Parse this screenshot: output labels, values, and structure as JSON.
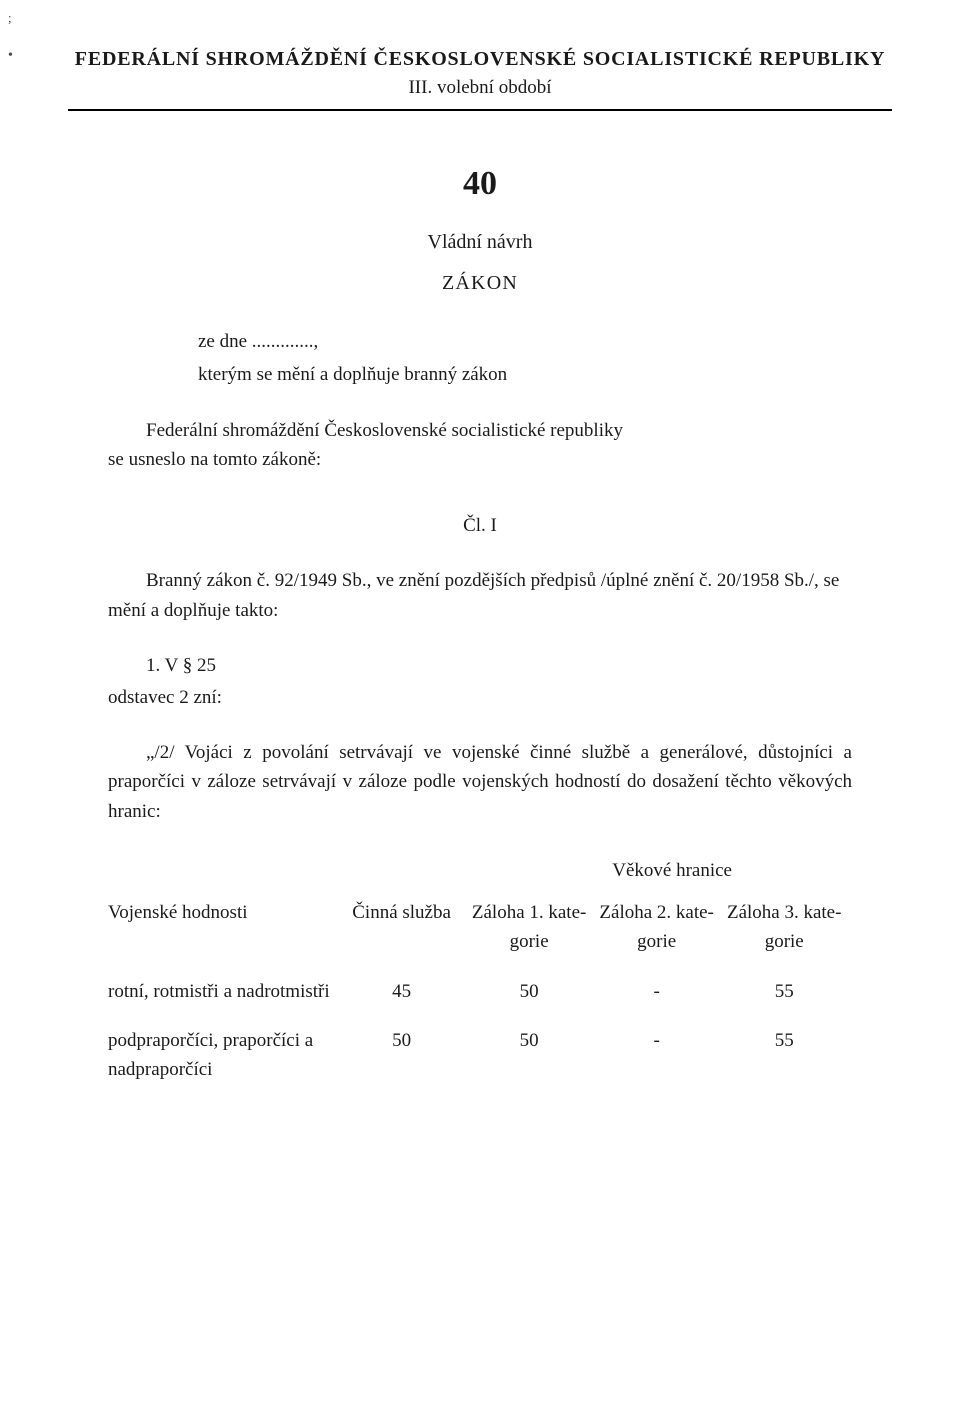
{
  "header": {
    "title": "FEDERÁLNÍ SHROMÁŽDĚNÍ ČESKOSLOVENSKÉ SOCIALISTICKÉ REPUBLIKY",
    "subtitle": "III. volební období"
  },
  "doc": {
    "number": "40",
    "type": "Vládní návrh",
    "title": "ZÁKON",
    "intro_line1": "ze dne .............,",
    "intro_line2": "kterým se mění a doplňuje branný zákon",
    "resolution_line1": "Federální shromáždění Československé socialistické republiky",
    "resolution_line2": "se usneslo na tomto zákoně:",
    "article": "Čl. I",
    "para1": "Branný zákon č. 92/1949 Sb., ve znění pozdějších předpisů /úplné znění č. 20/1958 Sb./, se mění a doplňuje takto:",
    "item1_line1": "1. V § 25",
    "item1_line2": "odstavec 2 zní:",
    "quote": "„/2/ Vojáci z povolání setrvávají ve vojenské činné službě a generálové, důstojníci a praporčíci v záloze setrvávají v záloze podle vojenských hodností do dosažení těchto věkových hranic:",
    "age_header": "Věkové hranice"
  },
  "table": {
    "columns": {
      "c1": "Vojenské hodnosti",
      "c2": "Činná služba",
      "c3": "Záloha 1. kate- gorie",
      "c4": "Záloha 2. kate- gorie",
      "c5": "Záloha 3. kate- gorie"
    },
    "rows": [
      {
        "label": "rotní, rotmistři a nadrotmistři",
        "v1": "45",
        "v2": "50",
        "v3": "-",
        "v4": "55"
      },
      {
        "label": "podpraporčíci, praporčíci a nadpraporčíci",
        "v1": "50",
        "v2": "50",
        "v3": "-",
        "v4": "55"
      }
    ]
  },
  "colors": {
    "text": "#1a1a1a",
    "background": "#ffffff",
    "rule": "#000000"
  }
}
